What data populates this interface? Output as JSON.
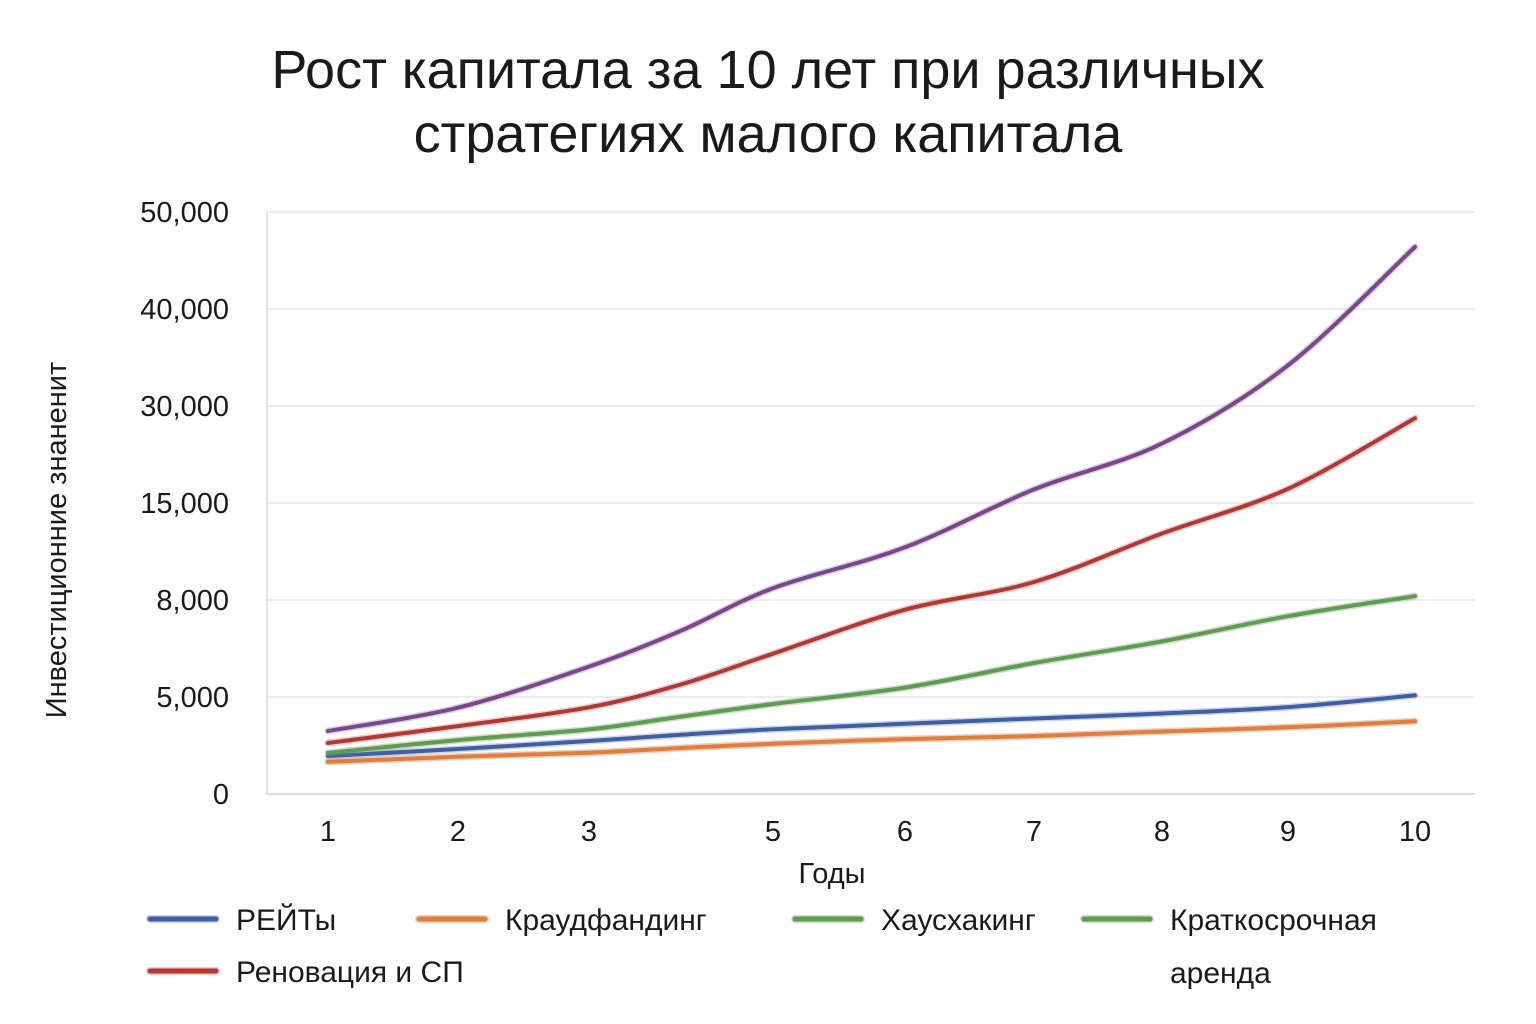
{
  "chart_data": {
    "type": "line",
    "title_lines": [
      "Рост капитала за 10 лет при различных",
      "стратегиях малого капитала"
    ],
    "xlabel": "Годы",
    "ylabel": "Инвестиционние знаненит",
    "x_ticks": [
      1,
      2,
      3,
      5,
      6,
      7,
      8,
      9,
      10
    ],
    "y_ticks": [
      "0",
      "5,000",
      "8,000",
      "15,000",
      "30,000",
      "40,000",
      "50,000"
    ],
    "grid": "horizontal",
    "legend_position": "bottom",
    "series": [
      {
        "name": "РЕЙТы",
        "color": "#3b5fb0",
        "points": [
          [
            1,
            1960
          ],
          [
            2,
            2320
          ],
          [
            3,
            2730
          ],
          [
            4,
            3050
          ],
          [
            5,
            3340
          ],
          [
            6,
            3620
          ],
          [
            7,
            3890
          ],
          [
            8,
            4150
          ],
          [
            9,
            4480
          ],
          [
            10,
            5050
          ]
        ],
        "legend_slot": 0
      },
      {
        "name": "Краудфандинг",
        "color": "#f07a2a",
        "points": [
          [
            1,
            1660
          ],
          [
            2,
            1920
          ],
          [
            3,
            2130
          ],
          [
            4,
            2370
          ],
          [
            5,
            2590
          ],
          [
            6,
            2830
          ],
          [
            7,
            2990
          ],
          [
            8,
            3220
          ],
          [
            9,
            3440
          ],
          [
            10,
            3750
          ]
        ],
        "legend_slot": 1
      },
      {
        "name": "Хаусхакинг",
        "color": "#5aa048",
        "points": [
          [
            1,
            2120
          ],
          [
            2,
            2780
          ],
          [
            3,
            3330
          ],
          [
            4,
            3990
          ],
          [
            5,
            4640
          ],
          [
            6,
            5290
          ],
          [
            7,
            6050
          ],
          [
            8,
            6720
          ],
          [
            9,
            7500
          ],
          [
            10,
            8280
          ]
        ],
        "legend_slot": 2
      },
      {
        "name": "Реновация и СП",
        "color": "#c0322b",
        "points": [
          [
            1,
            2630
          ],
          [
            2,
            3500
          ],
          [
            3,
            4470
          ],
          [
            4,
            5390
          ],
          [
            5,
            6340
          ],
          [
            6,
            7700
          ],
          [
            7,
            9300
          ],
          [
            8,
            12800
          ],
          [
            9,
            17200
          ],
          [
            10,
            28100
          ]
        ],
        "legend_slot": 4
      },
      {
        "name": "",
        "color": "#7e4494",
        "points": [
          [
            1,
            3250
          ],
          [
            2,
            4450
          ],
          [
            3,
            5940
          ],
          [
            4,
            7050
          ],
          [
            5,
            8850
          ],
          [
            6,
            11800
          ],
          [
            7,
            17100
          ],
          [
            8,
            24200
          ],
          [
            9,
            34200
          ],
          [
            10,
            46400
          ]
        ],
        "legend_slot": null
      }
    ],
    "legend_extra": {
      "lines": [
        "Краткосрочная",
        "аренда"
      ],
      "color": "#5aa048",
      "legend_slot": 3
    }
  }
}
